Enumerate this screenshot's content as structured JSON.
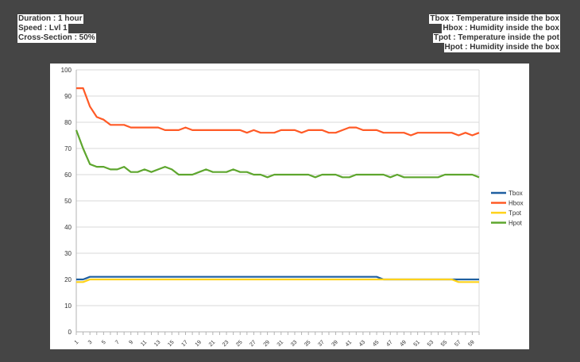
{
  "notes_left": [
    "Duration : 1 hour",
    "Speed : Lvl 1",
    "Cross-Section :  50%"
  ],
  "notes_right": [
    "Tbox : Temperature inside the box",
    "Hbox : Humidity inside the box",
    "Tpot : Temperature inside the pot",
    "Hpot : Humidity inside the box"
  ],
  "chart_data": {
    "type": "line",
    "title": "",
    "xlabel": "",
    "ylabel": "",
    "ylim": [
      0,
      100
    ],
    "yticks": [
      0,
      10,
      20,
      30,
      40,
      50,
      60,
      70,
      80,
      90,
      100
    ],
    "x": [
      1,
      2,
      3,
      4,
      5,
      6,
      7,
      8,
      9,
      10,
      11,
      12,
      13,
      14,
      15,
      16,
      17,
      18,
      19,
      20,
      21,
      22,
      23,
      24,
      25,
      26,
      27,
      28,
      29,
      30,
      31,
      32,
      33,
      34,
      35,
      36,
      37,
      38,
      39,
      40,
      41,
      42,
      43,
      44,
      45,
      46,
      47,
      48,
      49,
      50,
      51,
      52,
      53,
      54,
      55,
      56,
      57,
      58,
      59,
      60
    ],
    "xtick_labels": [
      "1",
      "3",
      "5",
      "7",
      "9",
      "11",
      "13",
      "15",
      "17",
      "19",
      "21",
      "23",
      "25",
      "27",
      "29",
      "31",
      "33",
      "35",
      "37",
      "39",
      "41",
      "43",
      "45",
      "47",
      "49",
      "51",
      "53",
      "55",
      "57",
      "59"
    ],
    "grid": true,
    "legend_position": "right",
    "series": [
      {
        "name": "Tbox",
        "color": "#1f5fa0",
        "values": [
          20,
          20,
          21,
          21,
          21,
          21,
          21,
          21,
          21,
          21,
          21,
          21,
          21,
          21,
          21,
          21,
          21,
          21,
          21,
          21,
          21,
          21,
          21,
          21,
          21,
          21,
          21,
          21,
          21,
          21,
          21,
          21,
          21,
          21,
          21,
          21,
          21,
          21,
          21,
          21,
          21,
          21,
          21,
          21,
          21,
          20,
          20,
          20,
          20,
          20,
          20,
          20,
          20,
          20,
          20,
          20,
          20,
          20,
          20,
          20
        ]
      },
      {
        "name": "Hbox",
        "color": "#ff5a26",
        "values": [
          93,
          93,
          86,
          82,
          81,
          79,
          79,
          79,
          78,
          78,
          78,
          78,
          78,
          77,
          77,
          77,
          78,
          77,
          77,
          77,
          77,
          77,
          77,
          77,
          77,
          76,
          77,
          76,
          76,
          76,
          77,
          77,
          77,
          76,
          77,
          77,
          77,
          76,
          76,
          77,
          78,
          78,
          77,
          77,
          77,
          76,
          76,
          76,
          76,
          75,
          76,
          76,
          76,
          76,
          76,
          76,
          75,
          76,
          75,
          76
        ]
      },
      {
        "name": "Tpot",
        "color": "#ffd21a",
        "values": [
          19,
          19,
          20,
          20,
          20,
          20,
          20,
          20,
          20,
          20,
          20,
          20,
          20,
          20,
          20,
          20,
          20,
          20,
          20,
          20,
          20,
          20,
          20,
          20,
          20,
          20,
          20,
          20,
          20,
          20,
          20,
          20,
          20,
          20,
          20,
          20,
          20,
          20,
          20,
          20,
          20,
          20,
          20,
          20,
          20,
          20,
          20,
          20,
          20,
          20,
          20,
          20,
          20,
          20,
          20,
          20,
          19,
          19,
          19,
          19
        ]
      },
      {
        "name": "Hpot",
        "color": "#5ea62e",
        "values": [
          77,
          70,
          64,
          63,
          63,
          62,
          62,
          63,
          61,
          61,
          62,
          61,
          62,
          63,
          62,
          60,
          60,
          60,
          61,
          62,
          61,
          61,
          61,
          62,
          61,
          61,
          60,
          60,
          59,
          60,
          60,
          60,
          60,
          60,
          60,
          59,
          60,
          60,
          60,
          59,
          59,
          60,
          60,
          60,
          60,
          60,
          59,
          60,
          59,
          59,
          59,
          59,
          59,
          59,
          60,
          60,
          60,
          60,
          60,
          59
        ]
      }
    ]
  }
}
